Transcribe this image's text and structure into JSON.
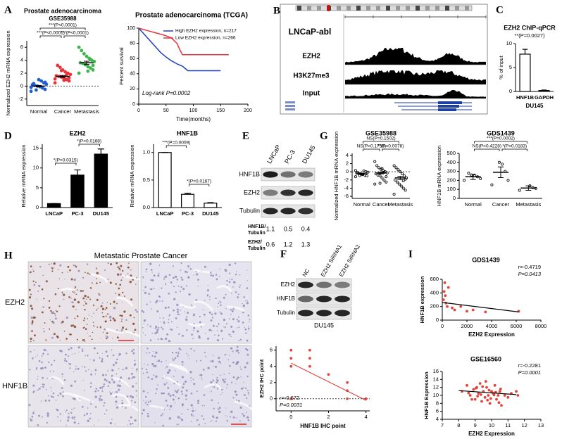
{
  "panel_labels": [
    "A",
    "B",
    "C",
    "D",
    "E",
    "F",
    "G",
    "H",
    "I"
  ],
  "genome_browser": {
    "title": "LNCaP-abl",
    "tracks": [
      "EZH2",
      "H3K27me3",
      "Input"
    ]
  },
  "blot_e": {
    "lanes": [
      "LNCaP",
      "PC-3",
      "DU145"
    ],
    "rows": [
      "HNF1B",
      "EZH2",
      "Tubulin"
    ],
    "quant": [
      {
        "label": [
          "HNF1B/",
          "Tubulin"
        ],
        "values": [
          1.1,
          0.5,
          0.4
        ]
      },
      {
        "label": [
          "EZH2/",
          "Tubulin"
        ],
        "values": [
          0.6,
          1.2,
          1.3
        ]
      }
    ]
  },
  "blot_f": {
    "lanes": [
      "NC",
      "EZH2 SiRNA1",
      "EZH2 SiRNA2"
    ],
    "rows": [
      "EZH2",
      "HNF1B",
      "Tubulin"
    ],
    "cell_line": "DU145"
  },
  "ihc": {
    "title": "Metastatic Prostate Cancer",
    "rows": [
      "EZH2",
      "HNF1B"
    ]
  },
  "chart_data": [
    {
      "type": "dotplot",
      "title": "Prostate adenocarcinoma",
      "subtitle": "GSE35988",
      "ylabel": "Normalized EZH2 mRNA expression",
      "categories": [
        "Normal",
        "Cancer",
        "Metastasis"
      ],
      "colors": [
        "#1f5fd0",
        "#e8333a",
        "#3cb54a"
      ],
      "groups": [
        [
          -0.8,
          -0.5,
          -0.3,
          -0.1,
          0,
          0.1,
          0.2,
          0.3,
          0.5,
          0.8,
          1.0,
          -0.6,
          0.4,
          -0.2,
          0.6
        ],
        [
          0.5,
          0.8,
          1.0,
          1.2,
          1.4,
          1.5,
          1.6,
          1.8,
          2.0,
          2.2,
          2.5,
          2.9,
          3.2,
          1.1,
          1.3,
          1.7,
          0.9,
          2.4
        ],
        [
          2.0,
          2.5,
          2.8,
          3.0,
          3.3,
          3.5,
          3.6,
          3.8,
          4.0,
          4.3,
          4.6,
          5.0,
          5.5,
          6.0,
          3.2,
          4.1,
          2.3
        ]
      ],
      "means": [
        0.0,
        1.5,
        3.6
      ],
      "errors": [
        0.1,
        0.15,
        0.25
      ],
      "baseline": 0,
      "ylim": [
        -3,
        7
      ],
      "yticks": [
        -2,
        0,
        2,
        4,
        6
      ],
      "annotations": [
        "***(P<0.0001)",
        "***(P<0.0001)",
        "***(P<0.0001)"
      ]
    },
    {
      "type": "line",
      "title": "Prostate adenocarcinoma (TCGA)",
      "xlabel": "Time(months)",
      "ylabel": "Percent survival",
      "series": [
        {
          "name": "High EZH2 expression, n=217",
          "color": "#1f3fbf",
          "x": [
            0,
            5,
            10,
            15,
            20,
            25,
            30,
            35,
            40,
            50,
            60,
            70,
            80,
            85,
            90,
            100,
            120,
            150
          ],
          "values": [
            100,
            96,
            92,
            88,
            84,
            80,
            76,
            72,
            68,
            62,
            57,
            53,
            50,
            47,
            44,
            44,
            44,
            44
          ]
        },
        {
          "name": "Low EZH2 expression, n=266",
          "color": "#e8333a",
          "x": [
            0,
            10,
            20,
            30,
            40,
            50,
            60,
            70,
            75,
            80,
            100,
            130,
            165
          ],
          "values": [
            100,
            98,
            96,
            94,
            92,
            90,
            87,
            80,
            72,
            65,
            65,
            65,
            65
          ]
        }
      ],
      "xlim": [
        0,
        200
      ],
      "xticks": [
        0,
        50,
        100,
        150,
        200
      ],
      "ylim": [
        0,
        100
      ],
      "yticks": [
        0,
        20,
        40,
        60,
        80,
        100
      ],
      "legend": "upper right",
      "annotations": [
        "Log-rank P=0.0002"
      ]
    },
    {
      "type": "bar",
      "title": "EZH2 ChIP-qPCR",
      "ylabel": "% of input",
      "xlabel": "DU145",
      "categories": [
        "HNF1B",
        "GAPDH"
      ],
      "values": [
        7.8,
        0.2
      ],
      "errors": [
        1.0,
        0.1
      ],
      "color": "#ffffff",
      "ylim": [
        0,
        10
      ],
      "yticks": [
        0,
        5,
        10
      ],
      "annotations": [
        "**(P=0.0027)"
      ]
    },
    {
      "type": "bar",
      "title": "EZH2",
      "ylabel": "Relative mRNA expression",
      "categories": [
        "LNCaP",
        "PC-3",
        "DU145"
      ],
      "values": [
        1,
        8.2,
        13.5
      ],
      "errors": [
        0,
        1.3,
        1.3
      ],
      "color": "#000000",
      "ylim": [
        0,
        16
      ],
      "yticks": [
        0,
        5,
        10,
        15
      ],
      "annotations": [
        "*(P=0.0315)",
        "*(P=0.0168)"
      ]
    },
    {
      "type": "bar",
      "title": "HNF1B",
      "ylabel": "Relative mRNA expression",
      "categories": [
        "LNCaP",
        "PC-3",
        "DU145"
      ],
      "values": [
        1,
        0.24,
        0.08
      ],
      "errors": [
        0,
        0.02,
        0.01
      ],
      "color": "#ffffff",
      "ylim": [
        0,
        1.15
      ],
      "yticks": [
        {
          "value": 0,
          "label": "0.0"
        },
        0.5,
        {
          "value": 1,
          "label": "1.0"
        }
      ],
      "annotations": [
        "***(P=0.0009)",
        "*(P=0.0167)"
      ]
    },
    {
      "type": "dotplot",
      "title": "GSE35988",
      "ylabel": "Normalized HNF1B mRNA expression",
      "categories": [
        "Normal",
        "Cancer",
        "Metastasis"
      ],
      "color": "#000000",
      "groups": [
        [
          -1.2,
          -1,
          -0.8,
          -0.6,
          -0.5,
          -0.4,
          -0.3,
          -0.1,
          0,
          0.2,
          -0.7,
          -0.9,
          -0.2,
          0.3
        ],
        [
          -3,
          -2.5,
          -2,
          -1.5,
          -1,
          -0.8,
          -0.5,
          -0.3,
          0,
          0.3,
          0.6,
          1,
          1.5,
          2.5,
          -1.2,
          -0.1,
          0.8,
          -2.8
        ],
        [
          -5.5,
          -4.5,
          -4,
          -3.5,
          -3,
          -2.5,
          -2,
          -1.5,
          -1,
          -0.5,
          0,
          0.5,
          1,
          1.5,
          -1.8,
          -2.2
        ]
      ],
      "means": [
        -0.5,
        -0.3,
        -1.5
      ],
      "errors": [
        0.15,
        0.2,
        0.4
      ],
      "baseline": 0,
      "ylim": [
        -6.5,
        4.5
      ],
      "yticks": [
        -6,
        -4,
        -2,
        0,
        2,
        4
      ],
      "annotations": [
        "NS(P=0.1502)",
        "NS(P=0.1756)",
        "**(P=0.0078)"
      ]
    },
    {
      "type": "dotplot",
      "title": "GDS1439",
      "ylabel": "HNF1B mRNA expression",
      "categories": [
        "Normal",
        "Cancer",
        "Metastasis"
      ],
      "color": "#000000",
      "groups": [
        [
          200,
          220,
          240,
          250,
          260,
          280
        ],
        [
          150,
          200,
          300,
          380,
          400
        ],
        [
          90,
          110,
          120,
          140
        ]
      ],
      "means": [
        240,
        290,
        115
      ],
      "errors": [
        30,
        60,
        25
      ],
      "ylim": [
        0,
        500
      ],
      "yticks": [
        0,
        100,
        200,
        300,
        400,
        500
      ],
      "annotations": [
        "***(P=0.0002)",
        "NS(P=0.4228)",
        "*(P=0.0183)"
      ]
    },
    {
      "type": "scatter",
      "xlabel": "HNF1B IHC point",
      "ylabel": "EZH2 IHC point",
      "color": "#e0443a",
      "x": [
        0,
        0,
        0,
        0,
        1,
        1,
        1,
        2,
        3,
        3,
        3,
        4,
        0
      ],
      "y": [
        6,
        5,
        4,
        0,
        6,
        5,
        4,
        3,
        2,
        1,
        0,
        0,
        0
      ],
      "fit": {
        "x": [
          0,
          4
        ],
        "y": [
          4.4,
          -0.2
        ]
      },
      "fit_color": "#e0443a",
      "baseline": 0,
      "xlim": [
        -0.8,
        4.2
      ],
      "xticks": [
        0,
        2,
        4
      ],
      "ylim": [
        -1.5,
        6.5
      ],
      "yticks": [
        0,
        2,
        4,
        6
      ],
      "annotations": [
        "r=-0.672",
        "P=0.0031"
      ]
    },
    {
      "type": "scatter",
      "title": "GDS1439",
      "xlabel": "EZH2 Expression",
      "ylabel": "HNF1B expression",
      "color": "#e0443a",
      "x": [
        100,
        200,
        300,
        400,
        500,
        800,
        1000,
        1500,
        2000,
        2500,
        3500,
        6200,
        150,
        250
      ],
      "y": [
        300,
        550,
        250,
        200,
        480,
        180,
        150,
        200,
        130,
        150,
        120,
        130,
        420,
        360
      ],
      "fit": {
        "x": [
          0,
          6200
        ],
        "y": [
          260,
          120
        ]
      },
      "fit_color": "#000000",
      "xlim": [
        0,
        8000
      ],
      "xticks": [
        0,
        2000,
        4000,
        6000,
        8000
      ],
      "ylim": [
        0,
        600
      ],
      "yticks": [
        0,
        200,
        400,
        600
      ],
      "annotations": [
        "r=-0.4719",
        "P=0.0413"
      ]
    },
    {
      "type": "scatter",
      "title": "GSE16560",
      "xlabel": "EZH2 Expression",
      "ylabel": "HNF1B Expression",
      "color": "#e0443a",
      "x": [
        8.2,
        8.5,
        8.7,
        8.9,
        9.0,
        9.1,
        9.2,
        9.3,
        9.4,
        9.5,
        9.6,
        9.7,
        9.8,
        9.9,
        10.0,
        10.1,
        10.2,
        10.3,
        10.4,
        10.5,
        10.6,
        10.8,
        11.0,
        11.2,
        11.5,
        8.8,
        9.05,
        9.35,
        9.65,
        9.95,
        10.25,
        10.55,
        9.45,
        9.75,
        10.15,
        8.6,
        9.15,
        9.85,
        10.45,
        11.6
      ],
      "y": [
        11,
        12.5,
        10,
        11.5,
        9,
        12,
        10.5,
        13,
        8.5,
        11,
        9.5,
        12,
        10,
        8,
        11,
        10.5,
        12.5,
        9,
        10,
        11,
        7.5,
        10,
        9.5,
        10.5,
        11,
        9,
        11.8,
        10.2,
        13.5,
        9.2,
        10.8,
        11.6,
        12.2,
        8.8,
        10.1,
        10.6,
        9.8,
        11.3,
        8.2,
        10
      ],
      "fit": {
        "x": [
          8,
          11.5
        ],
        "y": [
          11.2,
          10.2
        ]
      },
      "fit_color": "#000000",
      "xlim": [
        7,
        13
      ],
      "xticks": [
        7,
        8,
        9,
        10,
        11,
        12,
        13
      ],
      "ylim": [
        4,
        16
      ],
      "yticks": [
        4,
        6,
        8,
        10,
        12,
        14,
        16
      ],
      "annotations": [
        "r=-0.2281",
        "P=0.0001"
      ]
    }
  ]
}
